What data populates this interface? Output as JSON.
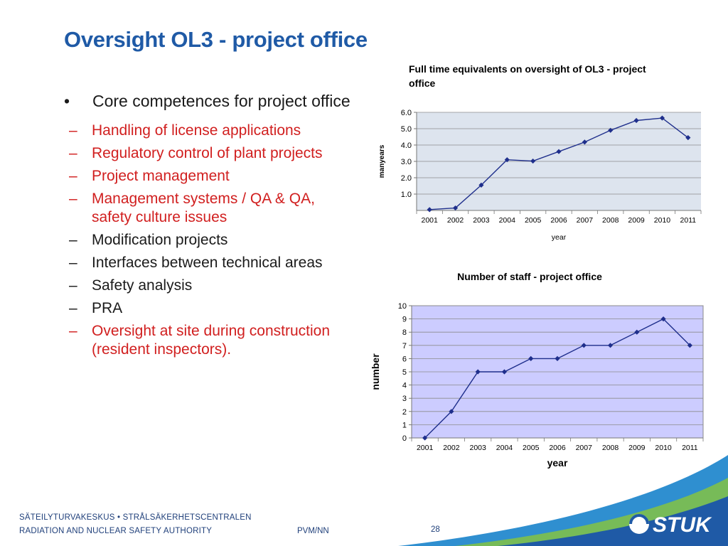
{
  "slide": {
    "title": "Oversight OL3 - project office",
    "bullet": "Core competences for project office",
    "bullet_symbol": "•",
    "dash_symbol": "–",
    "subitems": [
      {
        "text": "Handling of license applications",
        "color": "red"
      },
      {
        "text": "Regulatory control of plant projects",
        "color": "red"
      },
      {
        "text": "Project management",
        "color": "red"
      },
      {
        "text": "Management systems / QA & QA, safety culture issues",
        "color": "red"
      },
      {
        "text": "Modification projects",
        "color": "black"
      },
      {
        "text": "Interfaces between technical areas",
        "color": "black"
      },
      {
        "text": "Safety analysis",
        "color": "black"
      },
      {
        "text": "PRA",
        "color": "black"
      },
      {
        "text": "Oversight at site during construction (resident inspectors).",
        "color": "red"
      }
    ],
    "colors": {
      "title": "#1f5aa6",
      "red": "#d11f1f",
      "black": "#1a1a1a"
    }
  },
  "chart_data": [
    {
      "type": "line",
      "title": "Full time equivalents on oversight of OL3 - project office",
      "xlabel": "year",
      "ylabel": "manyears",
      "categories": [
        "2001",
        "2002",
        "2003",
        "2004",
        "2005",
        "2006",
        "2007",
        "2008",
        "2009",
        "2010",
        "2011"
      ],
      "values": [
        0.05,
        0.15,
        1.55,
        3.1,
        3.02,
        3.6,
        4.18,
        4.9,
        5.5,
        5.65,
        4.45
      ],
      "ylim": [
        0,
        6
      ],
      "yticks": [
        "1.0",
        "2.0",
        "3.0",
        "4.0",
        "5.0",
        "6.0"
      ],
      "grid": true,
      "plot_bg": "#dde4ee",
      "line_color": "#1f2f8c"
    },
    {
      "type": "line",
      "title": "Number of staff - project office",
      "xlabel": "year",
      "ylabel": "number",
      "categories": [
        "2001",
        "2002",
        "2003",
        "2004",
        "2005",
        "2006",
        "2007",
        "2008",
        "2009",
        "2010",
        "2011"
      ],
      "values": [
        0,
        2,
        5,
        5,
        6,
        6,
        7,
        7,
        8,
        9,
        7
      ],
      "ylim": [
        0,
        10
      ],
      "yticks": [
        "0",
        "1",
        "2",
        "3",
        "4",
        "5",
        "6",
        "7",
        "8",
        "9",
        "10"
      ],
      "grid": true,
      "plot_bg": "#ccccff",
      "line_color": "#1f2f8c"
    }
  ],
  "footer": {
    "org_line1": "SÄTEILYTURVAKESKUS • STRÅLSÄKERHETSCENTRALEN",
    "org_line2": "RADIATION AND NUCLEAR SAFETY AUTHORITY",
    "author": "PVM/NN",
    "page": "28",
    "logo_text": "STUK"
  }
}
